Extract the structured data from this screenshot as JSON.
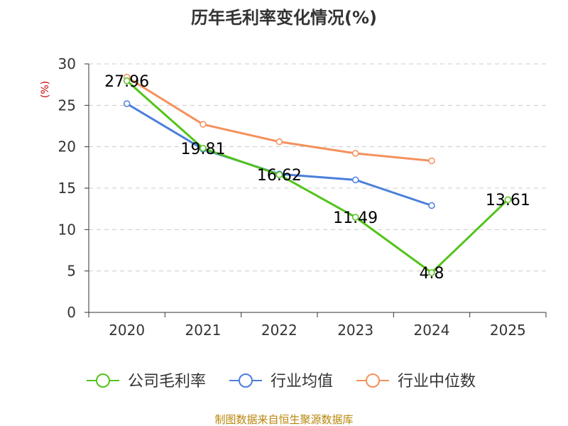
{
  "chart_data": {
    "type": "line",
    "title": "历年毛利率变化情况(%)",
    "ylabel": "(%)",
    "xlabel": "",
    "categories": [
      "2020",
      "2021",
      "2022",
      "2023",
      "2024",
      "2025"
    ],
    "ylim": [
      0,
      30
    ],
    "yticks": [
      0,
      5,
      10,
      15,
      20,
      25,
      30
    ],
    "grid": true,
    "legend_position": "bottom",
    "series": [
      {
        "name": "公司毛利率",
        "color": "#52c41a",
        "values": [
          27.96,
          19.81,
          16.62,
          11.49,
          4.8,
          13.61
        ],
        "labels": [
          "27.96",
          "19.81",
          "16.62",
          "11.49",
          "4.8",
          "13.61"
        ]
      },
      {
        "name": "行业均值",
        "color": "#4a7fdc",
        "values": [
          25.2,
          19.7,
          16.7,
          16.0,
          12.9,
          null
        ]
      },
      {
        "name": "行业中位数",
        "color": "#f4915c",
        "values": [
          28.4,
          22.7,
          20.6,
          19.2,
          18.3,
          null
        ]
      }
    ]
  },
  "source": "制图数据来自恒生聚源数据库"
}
